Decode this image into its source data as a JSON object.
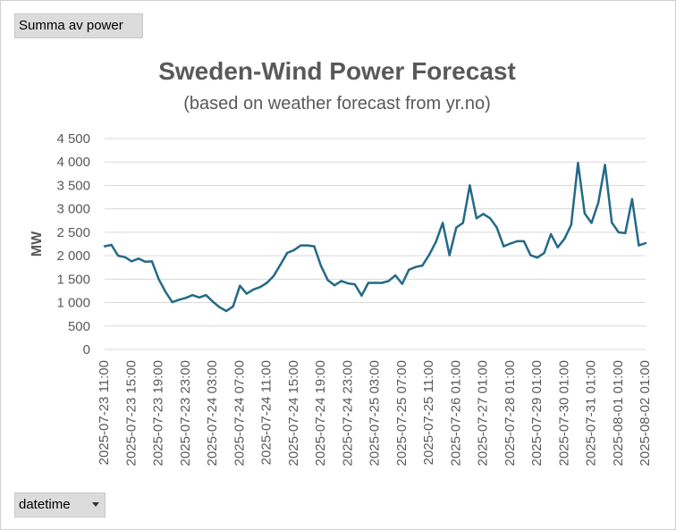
{
  "pivot": {
    "value_field": "Summa av power",
    "axis_field": "datetime"
  },
  "colors": {
    "line": "#236a86",
    "grid": "#d9d9d9",
    "text": "#595959",
    "title": "#595959"
  },
  "chart_data": {
    "type": "line",
    "title": "Sweden-Wind Power Forecast",
    "subtitle": "(based on weather forecast from yr.no)",
    "xlabel": "",
    "ylabel": "MW",
    "ylim": [
      0,
      4500
    ],
    "yticks": [
      0,
      500,
      1000,
      1500,
      2000,
      2500,
      3000,
      3500,
      4000,
      4500
    ],
    "ytick_labels": [
      "0",
      "500",
      "1 000",
      "1 500",
      "2 000",
      "2 500",
      "3 000",
      "3 500",
      "4 000",
      "4 500"
    ],
    "grid": true,
    "legend": "none",
    "x_tick_labels": [
      "2025-07-23 11:00",
      "2025-07-23 15:00",
      "2025-07-23 19:00",
      "2025-07-23 23:00",
      "2025-07-24 03:00",
      "2025-07-24 07:00",
      "2025-07-24 11:00",
      "2025-07-24 15:00",
      "2025-07-24 19:00",
      "2025-07-24 23:00",
      "2025-07-25 03:00",
      "2025-07-25 07:00",
      "2025-07-25 11:00",
      "2025-07-26 01:00",
      "2025-07-27 01:00",
      "2025-07-28 01:00",
      "2025-07-29 01:00",
      "2025-07-30 01:00",
      "2025-07-31 01:00",
      "2025-08-01 01:00",
      "2025-08-02 01:00"
    ],
    "series": [
      {
        "values": [
          2200,
          2230,
          2000,
          1970,
          1880,
          1940,
          1870,
          1880,
          1500,
          1230,
          1010,
          1060,
          1100,
          1160,
          1110,
          1160,
          1020,
          900,
          820,
          920,
          1360,
          1190,
          1280,
          1330,
          1420,
          1570,
          1810,
          2060,
          2120,
          2220,
          2220,
          2200,
          1780,
          1480,
          1370,
          1460,
          1410,
          1390,
          1150,
          1420,
          1420,
          1420,
          1460,
          1580,
          1400,
          1700,
          1760,
          1790,
          2020,
          2300,
          2700,
          2010,
          2600,
          2700,
          3500,
          2800,
          2890,
          2800,
          2600,
          2200,
          2260,
          2310,
          2310,
          2010,
          1960,
          2060,
          2460,
          2180,
          2360,
          2660,
          3980,
          2900,
          2700,
          3130,
          3940,
          2710,
          2500,
          2480,
          3210,
          2220,
          2270
        ]
      }
    ]
  }
}
